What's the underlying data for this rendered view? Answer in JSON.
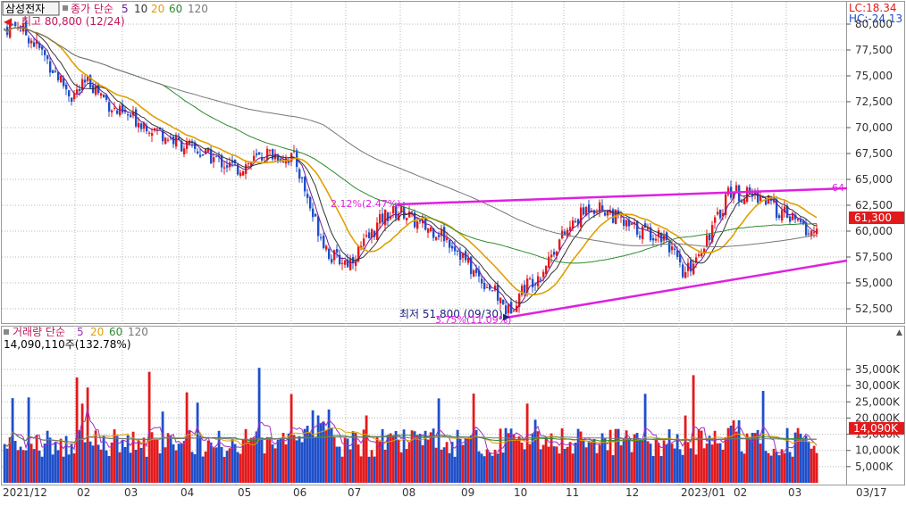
{
  "colors": {
    "up": "#e31a1c",
    "down": "#1f4fc9",
    "ma5": "#6a1b9a",
    "ma10": "#333333",
    "ma20": "#e0a000",
    "ma60": "#2e8b2e",
    "ma120": "#777777",
    "trend": "#e020e0",
    "grid": "#b8b8b8",
    "frame": "#9a9a9a",
    "last_price_bg": "#e31a1c"
  },
  "price_panel": {
    "stock_name": "삼성전자",
    "legend_prefix": "종가 단순",
    "ma_labels": [
      "5",
      "10",
      "20",
      "60",
      "120"
    ],
    "high_label": "최고 80,800 (12/24)",
    "low_label": "최저 51,800 (09/30)",
    "low_pct_label": "3.75%(11.09%)",
    "note_label": "2.12%(2.47%)",
    "trend_end_label": "64",
    "lc_label": "LC:18.34",
    "hc_label": "HC:-24.13",
    "last_price_label": "61,300",
    "y_ticks": [
      "80,000",
      "77,500",
      "75,000",
      "72,500",
      "70,000",
      "67,500",
      "65,000",
      "62,500",
      "60,000",
      "57,500",
      "55,000",
      "52,500"
    ]
  },
  "volume_panel": {
    "legend_prefix": "거래량 단순",
    "ma_labels": [
      "5",
      "20",
      "60",
      "120"
    ],
    "last_volume_text": "14,090,110주(132.78%)",
    "last_volume_badge": "14,090K",
    "y_ticks": [
      "35,000K",
      "30,000K",
      "25,000K",
      "20,000K",
      "15,000K",
      "10,000K",
      "5,000K"
    ]
  },
  "x_axis": {
    "labels": [
      "2021/12",
      "02",
      "03",
      "04",
      "05",
      "06",
      "07",
      "08",
      "09",
      "10",
      "11",
      "12",
      "2023/01",
      "02",
      "03",
      "03/17"
    ]
  },
  "chart_data": {
    "type": "candlestick",
    "series": [
      {
        "name": "종가",
        "approx_close_path": [
          {
            "x": "2021-12",
            "y": 79000
          },
          {
            "x": "2022-01",
            "y": 75000
          },
          {
            "x": "2022-02",
            "y": 73500
          },
          {
            "x": "2022-03",
            "y": 70000
          },
          {
            "x": "2022-04",
            "y": 67000
          },
          {
            "x": "2022-05",
            "y": 66500
          },
          {
            "x": "2022-06",
            "y": 59000
          },
          {
            "x": "2022-07",
            "y": 58000
          },
          {
            "x": "2022-08",
            "y": 61000
          },
          {
            "x": "2022-09",
            "y": 56000
          },
          {
            "x": "2022-10",
            "y": 55500
          },
          {
            "x": "2022-11",
            "y": 61000
          },
          {
            "x": "2022-12",
            "y": 59000
          },
          {
            "x": "2023-01",
            "y": 61500
          },
          {
            "x": "2023-02",
            "y": 62500
          },
          {
            "x": "2023-03-17",
            "y": 61300
          }
        ]
      }
    ],
    "ylim": [
      51500,
      81500
    ],
    "volume_ylim": [
      0,
      39000
    ]
  }
}
